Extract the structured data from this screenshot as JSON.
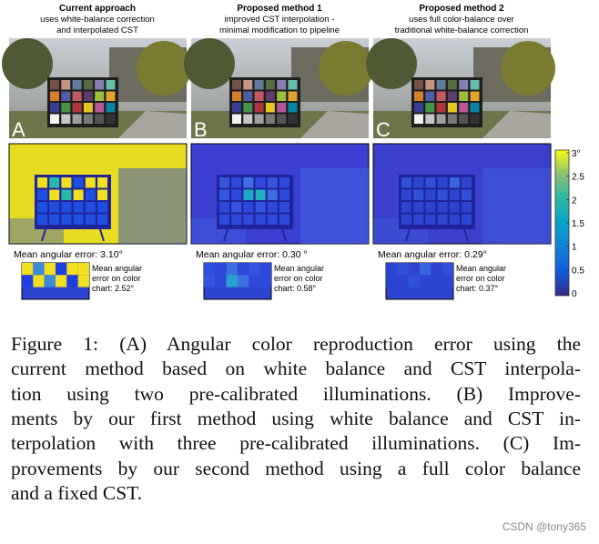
{
  "figure": {
    "panels": [
      {
        "title": "Current approach",
        "subtitle": [
          "uses white-balance correction",
          "and interpolated CST"
        ],
        "letter": "A",
        "mean_error": "Mean angular error: 3.10°",
        "chart_error": [
          "Mean angular",
          "error on color",
          "chart: 2.52°"
        ]
      },
      {
        "title": "Proposed method 1",
        "subtitle": [
          "improved CST interpolation -",
          "minimal modification to pipeline"
        ],
        "letter": "B",
        "mean_error": "Mean angular error: 0.30 °",
        "chart_error": [
          "Mean angular",
          "error on color",
          "chart: 0.58°"
        ]
      },
      {
        "title": "Proposed method 2",
        "subtitle": [
          "uses full color-balance over",
          "traditional white-balance correction"
        ],
        "letter": "C",
        "mean_error": "Mean angular error: 0.29°",
        "chart_error": [
          "Mean angular",
          "error on color",
          "chart: 0.37°"
        ]
      }
    ],
    "colorbar_labels": [
      "3°",
      "2.5",
      "2",
      "1.5",
      "1",
      "0.5",
      "0"
    ]
  },
  "caption": {
    "lines": [
      "Figure 1: (A) Angular color reproduction error using the",
      "current method based on white balance and CST interpola-",
      "tion using two pre-calibrated illuminations. (B) Improve-",
      "ments by our first method using white balance and CST in-",
      "terpolation with three pre-calibrated illuminations. (C) Im-",
      "provements by our second method using a full color balance",
      "and a fixed CST."
    ]
  },
  "watermark": "CSDN @tony365"
}
